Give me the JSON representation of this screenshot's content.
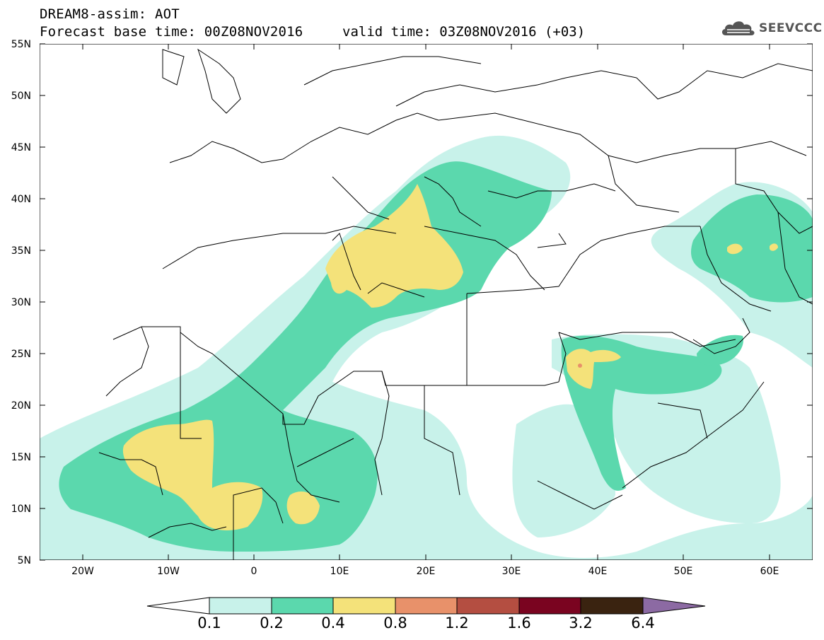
{
  "header": {
    "title_line1": "DREAM8-assim: AOT",
    "title_line2": "Forecast base time: 00Z08NOV2016",
    "valid_time": "valid time: 03Z08NOV2016 (+03)",
    "logo_text": "SEEVCCC",
    "logo_icon": "cloud-icon"
  },
  "map": {
    "lat_labels": [
      "55N",
      "50N",
      "45N",
      "40N",
      "35N",
      "30N",
      "25N",
      "20N",
      "15N",
      "10N",
      "5N"
    ],
    "lon_labels": [
      "20W",
      "10W",
      "0",
      "10E",
      "20E",
      "30E",
      "40E",
      "50E",
      "60E"
    ],
    "colors": {
      "level1": "#c8f2ea",
      "level2": "#5bd8ad",
      "level3": "#f4e27a",
      "level4": "#e8916a",
      "level5": "#b44e41",
      "level6": "#7a0420",
      "level7": "#3a2310",
      "level8": "#8c6aa3"
    }
  },
  "legend": {
    "labels": [
      "0.1",
      "0.2",
      "0.4",
      "0.8",
      "1.2",
      "1.6",
      "3.2",
      "6.4"
    ],
    "colors": [
      "#c8f2ea",
      "#5bd8ad",
      "#f4e27a",
      "#e8916a",
      "#b44e41",
      "#7a0420",
      "#3a2310"
    ],
    "low_color": "#ffffff",
    "high_color": "#8c6aa3"
  }
}
